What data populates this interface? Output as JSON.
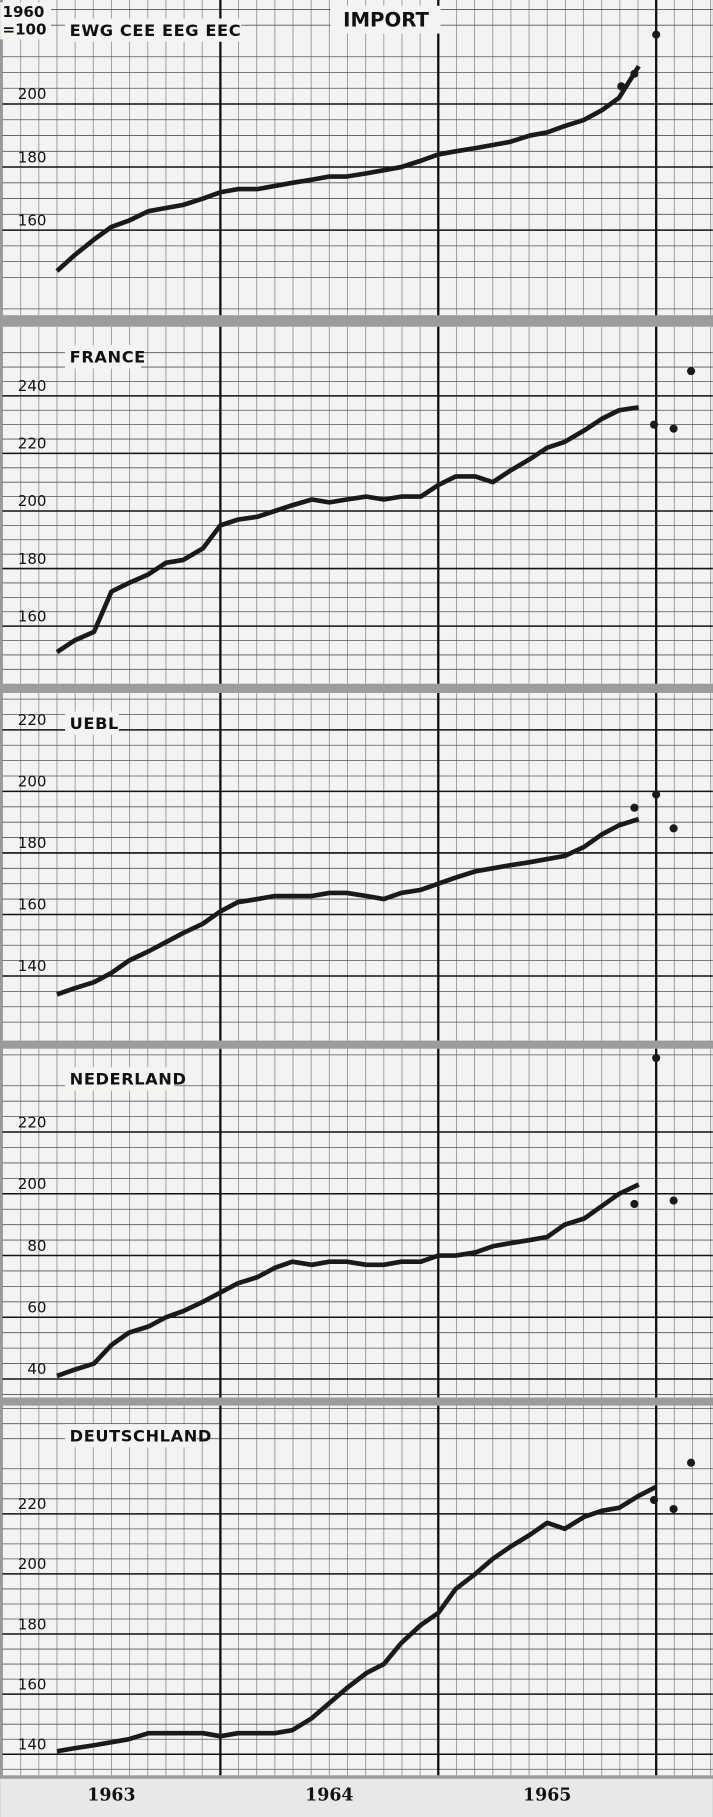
{
  "title": "IMPORT",
  "unit": [
    "1960",
    "=100"
  ],
  "xlim": [
    1963,
    1966.26
  ],
  "xticks": [
    {
      "value": 1963.5,
      "label": "1963"
    },
    {
      "value": 1964.5,
      "label": "1964"
    },
    {
      "value": 1965.5,
      "label": "1965"
    }
  ],
  "year_lines": [
    1964,
    1965,
    1966
  ],
  "chart_data": [
    {
      "type": "line",
      "title": "EWG CEE EEG EEC",
      "ylim": [
        133,
        233
      ],
      "yticks": [
        160,
        180,
        200
      ],
      "x": [
        1963.25,
        1963.33,
        1963.42,
        1963.5,
        1963.58,
        1963.67,
        1963.75,
        1963.83,
        1963.92,
        1964,
        1964.08,
        1964.17,
        1964.25,
        1964.33,
        1964.42,
        1964.5,
        1964.58,
        1964.67,
        1964.75,
        1964.83,
        1964.92,
        1965,
        1965.08,
        1965.17,
        1965.25,
        1965.33,
        1965.42,
        1965.5,
        1965.58,
        1965.67,
        1965.75,
        1965.83,
        1965.92
      ],
      "values": [
        147,
        152,
        157,
        161,
        163,
        166,
        167,
        168,
        170,
        172,
        173,
        173,
        174,
        175,
        176,
        177,
        177,
        178,
        179,
        180,
        182,
        184,
        185,
        186,
        187,
        188,
        190,
        191,
        193,
        195,
        198,
        202,
        212
      ],
      "dots_x": [
        1965.84,
        1965.9,
        1966
      ],
      "dots_y": [
        205.6,
        209.6,
        222
      ],
      "color": "#1a1a1a"
    },
    {
      "type": "line",
      "title": "FRANCE",
      "ylim": [
        140,
        264
      ],
      "yticks": [
        160,
        180,
        200,
        220,
        240
      ],
      "x": [
        1963.25,
        1963.33,
        1963.42,
        1963.5,
        1963.58,
        1963.67,
        1963.75,
        1963.83,
        1963.92,
        1964,
        1964.08,
        1964.17,
        1964.25,
        1964.33,
        1964.42,
        1964.5,
        1964.58,
        1964.67,
        1964.75,
        1964.83,
        1964.92,
        1965,
        1965.08,
        1965.17,
        1965.25,
        1965.33,
        1965.42,
        1965.5,
        1965.58,
        1965.67,
        1965.75,
        1965.83,
        1965.92
      ],
      "values": [
        151,
        155,
        158,
        172,
        175,
        178,
        182,
        183,
        187,
        195,
        197,
        198,
        200,
        202,
        204,
        203,
        204,
        205,
        204,
        205,
        205,
        209,
        212,
        212,
        210,
        214,
        218,
        222,
        224,
        228,
        232,
        235,
        236
      ],
      "dots_x": [
        1965.99,
        1966.08,
        1966.16
      ],
      "dots_y": [
        230,
        228.6,
        248.6
      ],
      "color": "#1a1a1a"
    },
    {
      "type": "line",
      "title": "UEBL",
      "ylim": [
        119,
        232
      ],
      "yticks": [
        140,
        160,
        180,
        200,
        220
      ],
      "x": [
        1963.25,
        1963.33,
        1963.42,
        1963.5,
        1963.58,
        1963.67,
        1963.75,
        1963.83,
        1963.92,
        1964,
        1964.08,
        1964.17,
        1964.25,
        1964.33,
        1964.42,
        1964.5,
        1964.58,
        1964.67,
        1964.75,
        1964.83,
        1964.92,
        1965,
        1965.08,
        1965.17,
        1965.25,
        1965.33,
        1965.42,
        1965.5,
        1965.58,
        1965.67,
        1965.75,
        1965.83,
        1965.92
      ],
      "values": [
        134,
        136,
        138,
        141,
        145,
        148,
        151,
        154,
        157,
        161,
        164,
        165,
        166,
        166,
        166,
        167,
        167,
        166,
        165,
        167,
        168,
        170,
        172,
        174,
        175,
        176,
        177,
        178,
        179,
        182,
        186,
        189,
        191
      ],
      "dots_x": [
        1965.9,
        1966,
        1966.08
      ],
      "dots_y": [
        194.7,
        199,
        188
      ],
      "color": "#1a1a1a"
    },
    {
      "type": "line",
      "title": "NEDERLAND",
      "ylim": [
        134,
        247
      ],
      "yticks": [
        {
          "value": 140,
          "label": "40"
        },
        {
          "value": 160,
          "label": "60"
        },
        {
          "value": 180,
          "label": "80"
        },
        200,
        220
      ],
      "x": [
        1963.25,
        1963.33,
        1963.42,
        1963.5,
        1963.58,
        1963.67,
        1963.75,
        1963.83,
        1963.92,
        1964,
        1964.08,
        1964.17,
        1964.25,
        1964.33,
        1964.42,
        1964.5,
        1964.58,
        1964.67,
        1964.75,
        1964.83,
        1964.92,
        1965,
        1965.08,
        1965.17,
        1965.25,
        1965.33,
        1965.42,
        1965.5,
        1965.58,
        1965.67,
        1965.75,
        1965.83,
        1965.92
      ],
      "values": [
        141,
        143,
        145,
        151,
        155,
        157,
        160,
        162,
        165,
        168,
        171,
        173,
        176,
        178,
        177,
        178,
        178,
        177,
        177,
        178,
        178,
        180,
        180,
        181,
        183,
        184,
        185,
        186,
        190,
        192,
        196,
        200,
        203
      ],
      "dots_x": [
        1965.9,
        1966,
        1966.08
      ],
      "dots_y": [
        196.7,
        244,
        197.8
      ],
      "color": "#1a1a1a"
    },
    {
      "type": "line",
      "title": "DEUTSCHLAND",
      "ylim": [
        133,
        256
      ],
      "yticks": [
        140,
        160,
        180,
        200,
        220
      ],
      "x": [
        1963.25,
        1963.33,
        1963.42,
        1963.5,
        1963.58,
        1963.67,
        1963.75,
        1963.83,
        1963.92,
        1964,
        1964.08,
        1964.17,
        1964.25,
        1964.33,
        1964.42,
        1964.5,
        1964.58,
        1964.67,
        1964.75,
        1964.83,
        1964.92,
        1965,
        1965.08,
        1965.17,
        1965.25,
        1965.33,
        1965.42,
        1965.5,
        1965.58,
        1965.67,
        1965.75,
        1965.83,
        1965.92,
        1966
      ],
      "values": [
        141,
        142,
        143,
        144,
        145,
        147,
        147,
        147,
        147,
        146,
        147,
        147,
        147,
        148,
        152,
        157,
        162,
        167,
        170,
        177,
        183,
        187,
        195,
        200,
        205,
        209,
        213,
        217,
        215,
        219,
        221,
        222,
        226,
        229
      ],
      "dots_x": [
        1965.99,
        1966.08,
        1966.16
      ],
      "dots_y": [
        224.6,
        221.6,
        237
      ],
      "color": "#1a1a1a"
    }
  ]
}
